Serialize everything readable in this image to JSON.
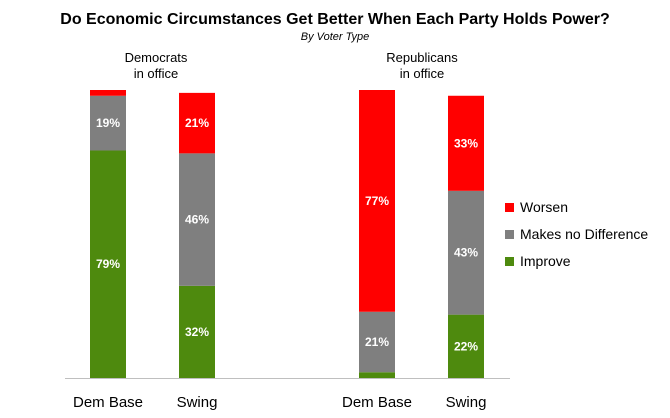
{
  "chart_data": {
    "type": "bar",
    "stacked": true,
    "title": "Do Economic Circumstances Get Better When Each Party Holds Power?",
    "subtitle": "By Voter Type",
    "groups": [
      {
        "label_lines": [
          "Democrats",
          "in office"
        ],
        "categories": [
          "Dem Base",
          "Swing"
        ]
      },
      {
        "label_lines": [
          "Republicans",
          "in office"
        ],
        "categories": [
          "Dem Base",
          "Swing"
        ]
      }
    ],
    "categories": [
      "Dem Base",
      "Swing",
      "Dem Base",
      "Swing"
    ],
    "series": [
      {
        "name": "Improve",
        "color": "#4e8a0e",
        "values": [
          79,
          32,
          2,
          22
        ],
        "labels": [
          "79%",
          "32%",
          "",
          "22%"
        ]
      },
      {
        "name": "Makes no Difference",
        "color": "#7f7f7f",
        "values": [
          19,
          46,
          21,
          43
        ],
        "labels": [
          "19%",
          "46%",
          "21%",
          "43%"
        ]
      },
      {
        "name": "Worsen",
        "color": "#ff0000",
        "values": [
          2,
          21,
          77,
          33
        ],
        "labels": [
          "",
          "21%",
          "77%",
          "33%"
        ]
      }
    ],
    "ylim": [
      0,
      100
    ],
    "legend": {
      "position": "right",
      "order": [
        "Worsen",
        "Makes no Difference",
        "Improve"
      ]
    },
    "grid": false
  }
}
